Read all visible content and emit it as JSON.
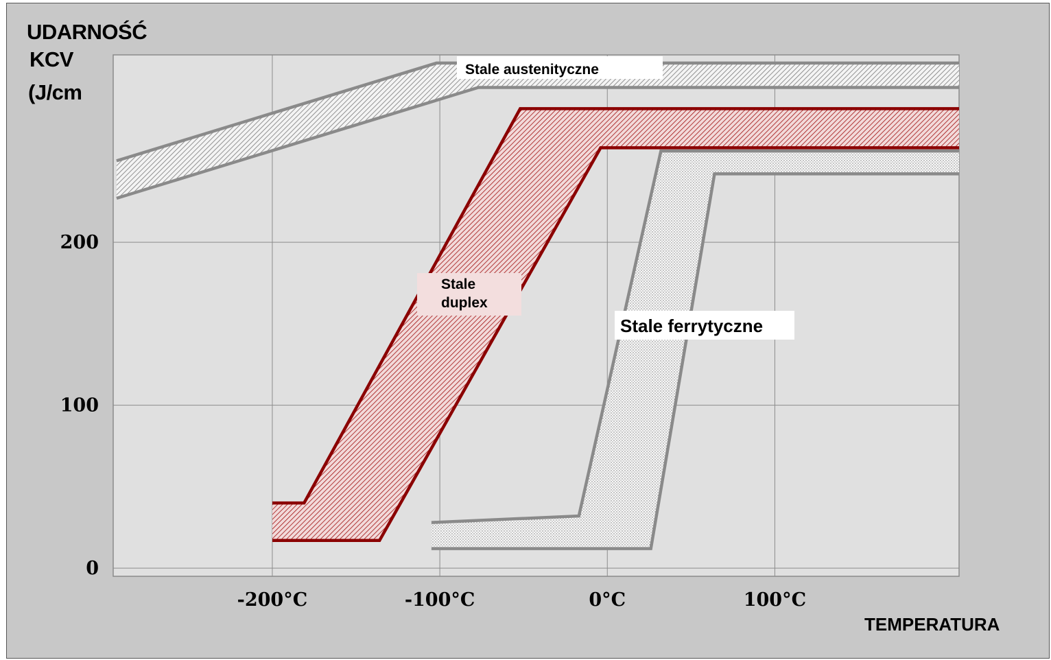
{
  "chart_data": {
    "type": "area",
    "ylabel": [
      "UDARNOŚĆ",
      "KCV",
      "(J/cm"
    ],
    "xlabel": "TEMPERATURA",
    "x_ticks": [
      "-200°C",
      "-100°C",
      "0°C",
      "100°C"
    ],
    "x_tick_values": [
      -200,
      -100,
      0,
      100
    ],
    "y_ticks": [
      "0",
      "100",
      "200"
    ],
    "y_tick_values": [
      0,
      100,
      200
    ],
    "xlim": [
      -295,
      210
    ],
    "ylim": [
      -5,
      315
    ],
    "grid": true,
    "series": [
      {
        "name": "Stale austenityczne",
        "color": "#8a8a8a",
        "fill": "hatch",
        "upper": [
          [
            -293,
            250
          ],
          [
            -102,
            310
          ],
          [
            210,
            310
          ]
        ],
        "lower": [
          [
            -293,
            227
          ],
          [
            -77,
            295
          ],
          [
            210,
            295
          ]
        ]
      },
      {
        "name": "Stale duplex",
        "color": "#8b0000",
        "fill": "hatch",
        "upper": [
          [
            -200,
            40
          ],
          [
            -181,
            40
          ],
          [
            -52,
            282
          ],
          [
            210,
            282
          ]
        ],
        "lower": [
          [
            -200,
            17
          ],
          [
            -136,
            17
          ],
          [
            -4,
            258
          ],
          [
            210,
            258
          ]
        ]
      },
      {
        "name": "Stale ferrytyczne",
        "color": "#8a8a8a",
        "fill": "dots",
        "upper": [
          [
            -105,
            28
          ],
          [
            -17,
            32
          ],
          [
            32,
            256
          ],
          [
            210,
            256
          ]
        ],
        "lower": [
          [
            -105,
            12
          ],
          [
            26,
            12
          ],
          [
            64,
            242
          ],
          [
            210,
            242
          ]
        ]
      }
    ]
  }
}
